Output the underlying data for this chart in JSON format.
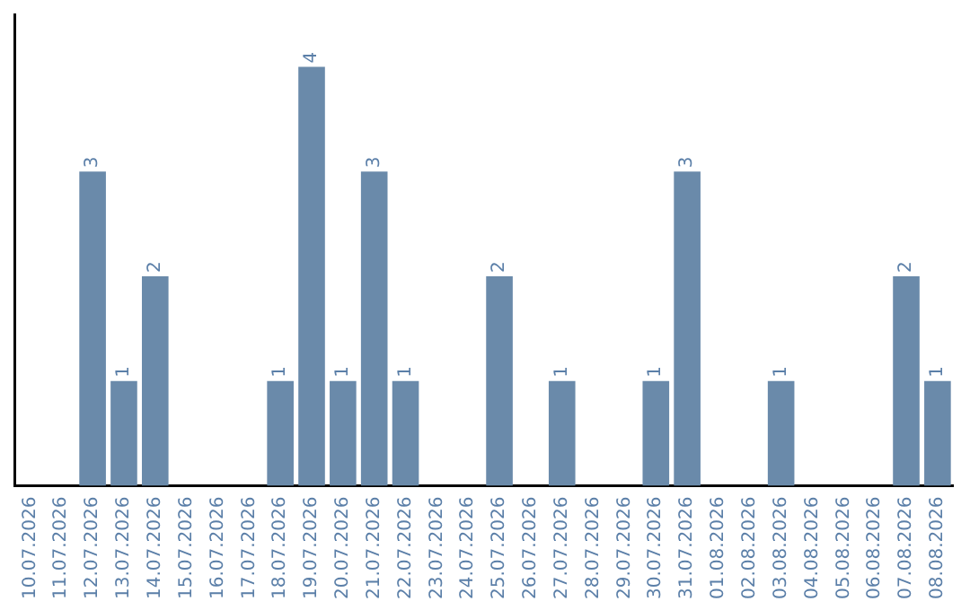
{
  "chart_data": {
    "type": "bar",
    "categories": [
      "10.07.2026",
      "11.07.2026",
      "12.07.2026",
      "13.07.2026",
      "14.07.2026",
      "15.07.2026",
      "16.07.2026",
      "17.07.2026",
      "18.07.2026",
      "19.07.2026",
      "20.07.2026",
      "21.07.2026",
      "22.07.2026",
      "23.07.2026",
      "24.07.2026",
      "25.07.2026",
      "26.07.2026",
      "27.07.2026",
      "28.07.2026",
      "29.07.2026",
      "30.07.2026",
      "31.07.2026",
      "01.08.2026",
      "02.08.2026",
      "03.08.2026",
      "04.08.2026",
      "05.08.2026",
      "06.08.2026",
      "07.08.2026",
      "08.08.2026"
    ],
    "values": [
      0,
      0,
      3,
      1,
      2,
      0,
      0,
      0,
      1,
      4,
      1,
      3,
      1,
      0,
      0,
      2,
      0,
      1,
      0,
      0,
      1,
      3,
      0,
      0,
      1,
      0,
      0,
      0,
      2,
      1
    ],
    "value_labels": [
      null,
      null,
      "3",
      "1",
      "2",
      null,
      null,
      null,
      "1",
      "4",
      "1",
      "3",
      "1",
      null,
      null,
      "2",
      null,
      "1",
      null,
      null,
      "1",
      "3",
      null,
      null,
      "1",
      null,
      null,
      null,
      "2",
      "1"
    ],
    "color": "#6a8aaa",
    "grid": false,
    "legend": false
  }
}
